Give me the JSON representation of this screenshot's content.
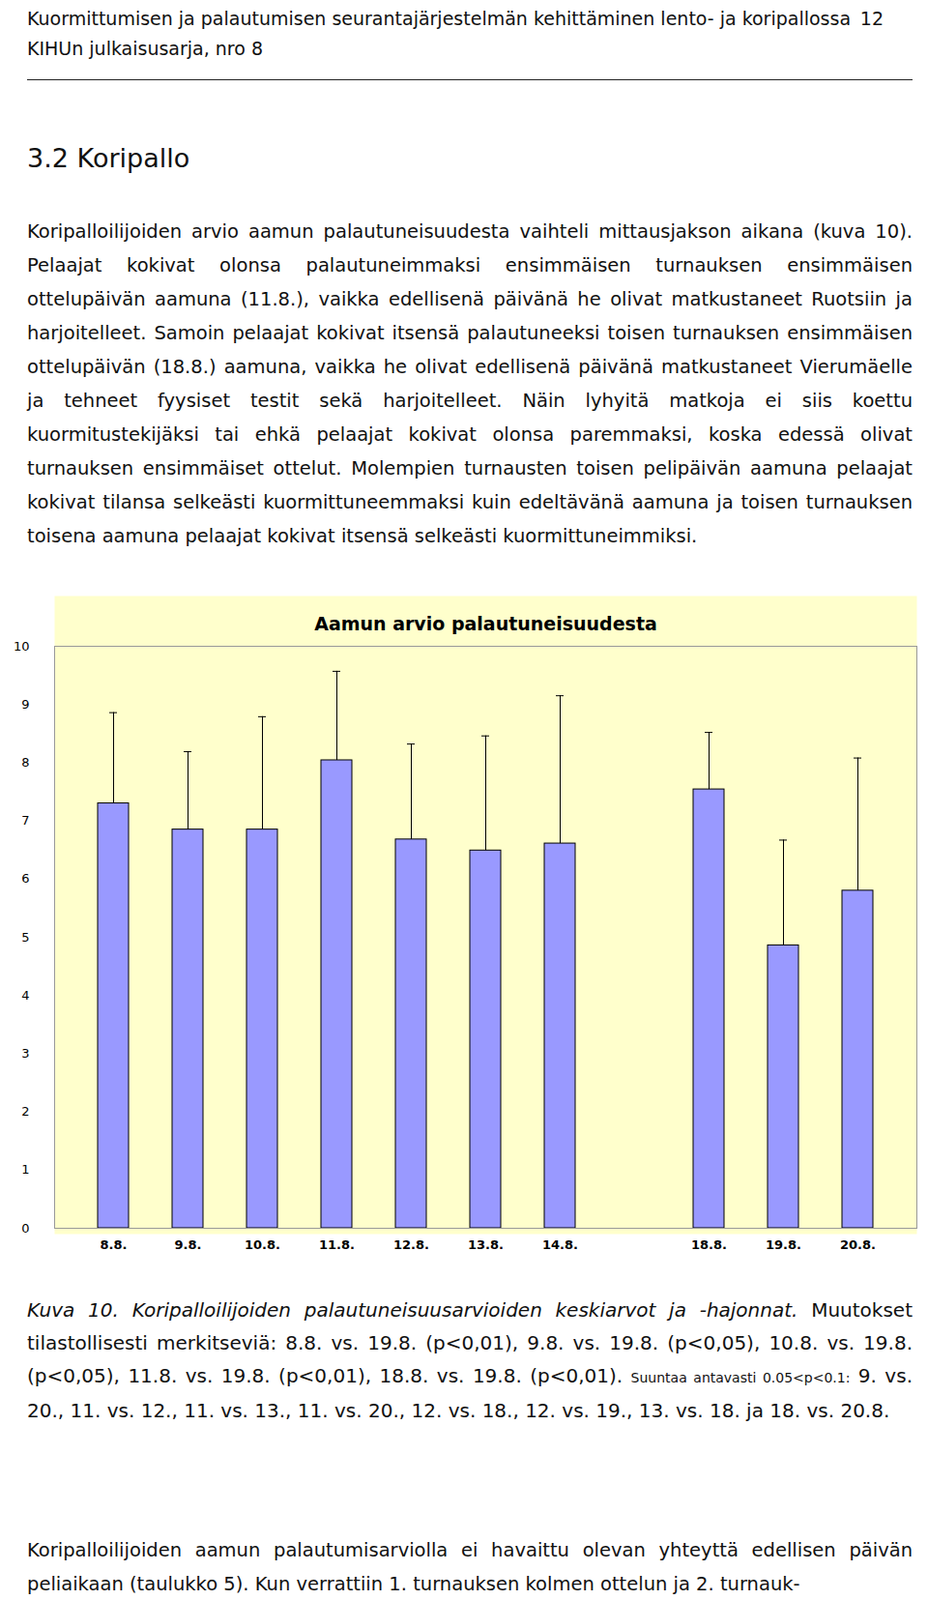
{
  "header": {
    "lines": [
      "Kuormittumisen ja palautumisen seurantajärjestelmän kehittäminen lento- ja koripallossa",
      "KIHUn julkaisusarja, nro 8"
    ],
    "page": "12"
  },
  "heading": "3.2 Koripallo",
  "paragraph": "Koripalloilijoiden arvio aamun palautuneisuudesta vaihteli mittausjakson aikana (kuva 10). Pelaajat kokivat olonsa palautuneimmaksi ensimmäisen turnauksen ensimmäisen ottelupäivän aamuna (11.8.), vaikka edellisenä päivänä he olivat matkustaneet Ruotsiin ja harjoitelleet. Samoin pelaajat kokivat itsensä palautuneeksi toisen turnauksen ensimmäisen ottelupäivän (18.8.) aamuna, vaikka he olivat edellisenä päivänä matkustaneet Vierumäelle ja tehneet fyysiset testit sekä harjoitelleet. Näin lyhyitä matkoja ei siis koettu kuormitustekijäksi tai ehkä pelaajat kokivat olonsa paremmaksi, koska edessä olivat turnauksen ensimmäiset ottelut. Molempien turnausten toisen pelipäivän aamuna pelaajat kokivat tilansa selkeästi kuormittuneemmaksi kuin edeltävänä aamuna ja toisen turnauksen toisena aamuna pelaajat kokivat itsensä selkeästi kuormittuneimmiksi.",
  "chart_data": {
    "type": "bar",
    "title": "Aamun arvio palautuneisuudesta",
    "categories": [
      "8.8.",
      "9.8.",
      "10.8.",
      "11.8.",
      "12.8.",
      "13.8.",
      "14.8.",
      null,
      "18.8.",
      "19.8.",
      "20.8."
    ],
    "values": [
      7.3,
      6.85,
      6.85,
      8.04,
      6.68,
      6.49,
      6.61,
      null,
      7.54,
      4.86,
      5.8
    ],
    "errors": [
      1.56,
      1.34,
      1.94,
      1.53,
      1.64,
      1.97,
      2.54,
      null,
      0.98,
      1.81,
      2.28
    ],
    "color": "#9999ff",
    "ylim": [
      0,
      10
    ],
    "yticks": [
      0,
      1,
      2,
      3,
      4,
      5,
      6,
      7,
      8,
      9,
      10
    ],
    "grid": false
  },
  "caption": {
    "italic": "Kuva 10. Koripalloilijoiden palautuneisuusarvioiden keskiarvot ja -hajonnat.",
    "text": "Muutokset tilastollisesti merkitseviä: 8.8. vs. 19.8. (p<0,01), 9.8. vs. 19.8. (p<0,05), 10.8. vs. 19.8. (p<0,05), 11.8. vs. 19.8. (p<0,01), 18.8. vs. 19.8. (p<0,01).",
    "small": "Suuntaa antavasti 0.05<p<0.1:",
    "rest": "9. vs. 20., 11. vs. 12., 11. vs. 13., 11. vs. 20., 12. vs. 18., 12. vs. 19., 13. vs. 18. ja 18. vs. 20.8."
  },
  "final_paragraph": "Koripalloilijoiden aamun palautumisarviolla ei havaittu olevan yhteyttä edellisen päivän peliaikaan (taulukko 5). Kun verrattiin 1. turnauksen kolmen ottelun ja 2. turnauk-"
}
